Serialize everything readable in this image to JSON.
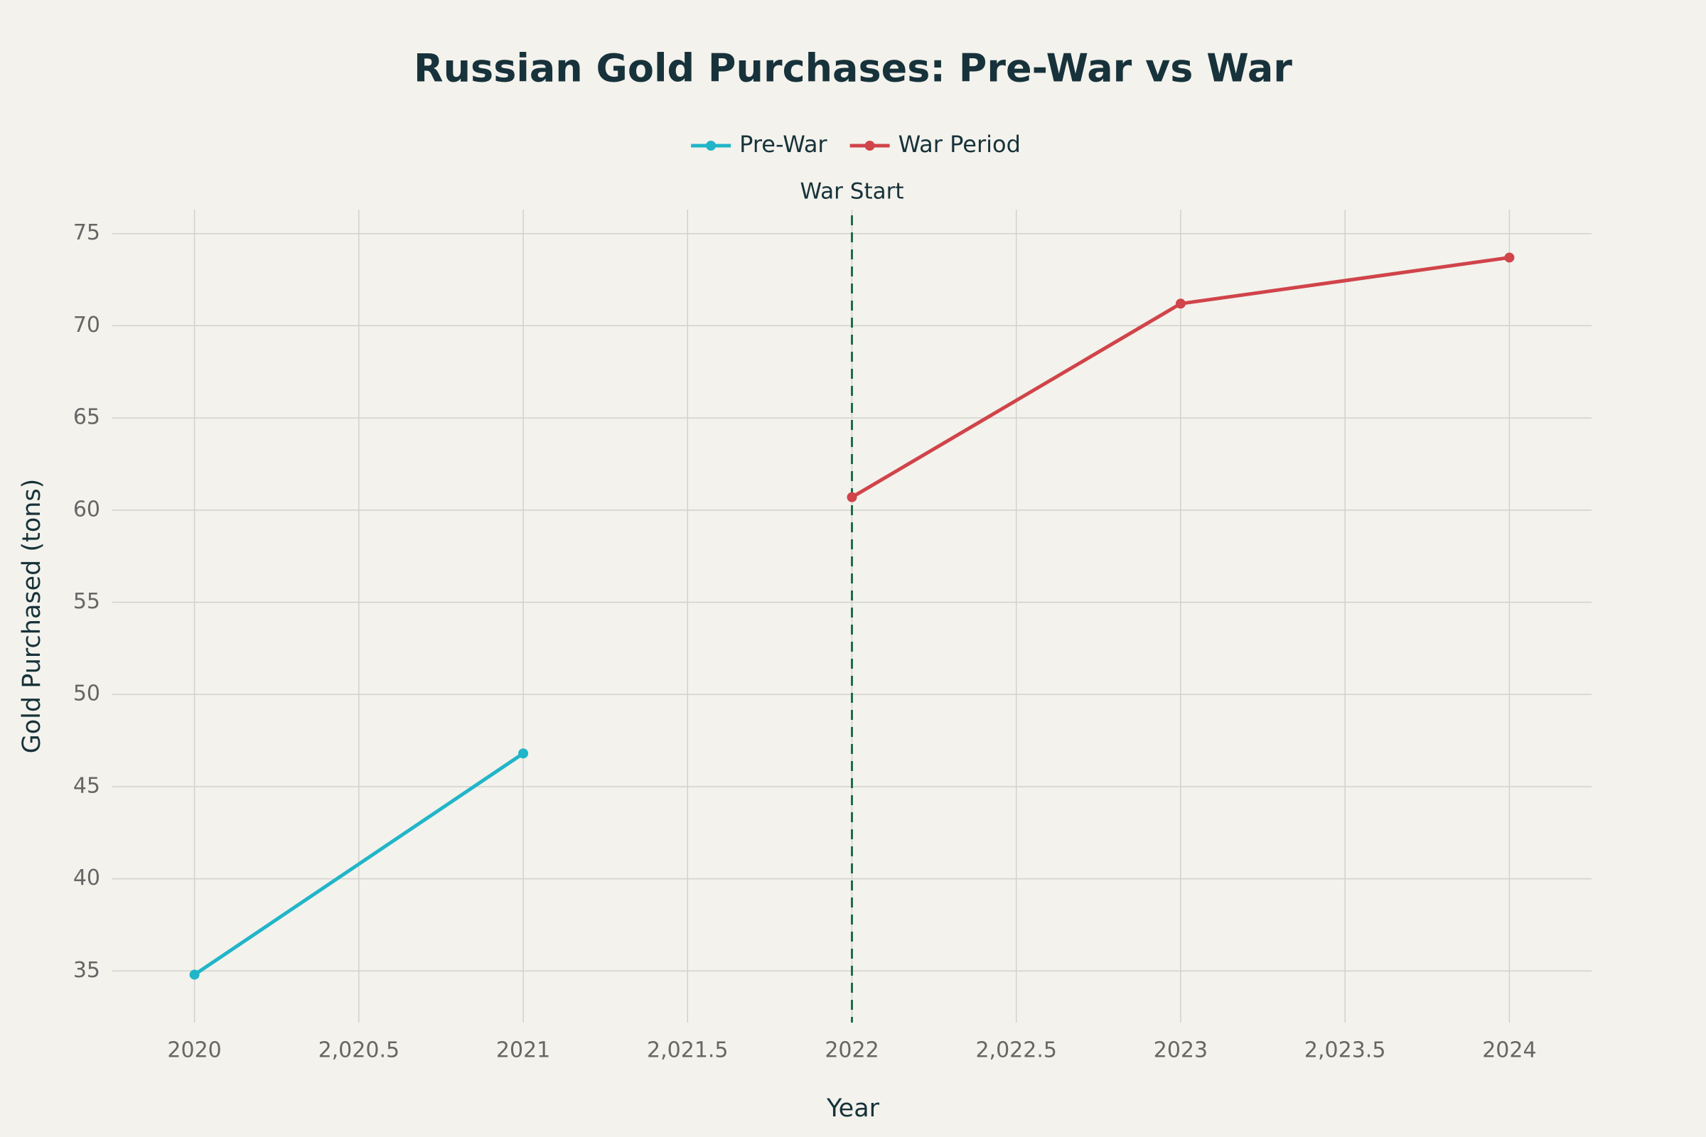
{
  "chart_data": {
    "type": "line",
    "title": "Russian Gold Purchases: Pre-War vs War",
    "x_label": "Year",
    "y_label": "Gold Purchased (tons)",
    "series": [
      {
        "name": "Pre-War",
        "color": "#21b5c9",
        "x": [
          2020,
          2021
        ],
        "values": [
          34.8,
          46.8
        ]
      },
      {
        "name": "War Period",
        "color": "#d0444a",
        "x": [
          2022,
          2023,
          2024
        ],
        "values": [
          60.7,
          71.2,
          73.7
        ]
      }
    ],
    "annotation": {
      "text": "War Start",
      "x": 2022,
      "color": "#1f6b4a"
    },
    "xlim": [
      2019.75,
      2024.25
    ],
    "xticks": [
      2020,
      {
        "value": 2020.5,
        "label": "2,020.5"
      },
      2021,
      {
        "value": 2021.5,
        "label": "2,021.5"
      },
      2022,
      {
        "value": 2022.5,
        "label": "2,022.5"
      },
      2023,
      {
        "value": 2023.5,
        "label": "2,023.5"
      },
      2024
    ],
    "ylim": [
      32.2,
      76.3
    ],
    "yticks": [
      35,
      40,
      45,
      50,
      55,
      60,
      65,
      70,
      75
    ],
    "grid": true,
    "legend": "top"
  }
}
